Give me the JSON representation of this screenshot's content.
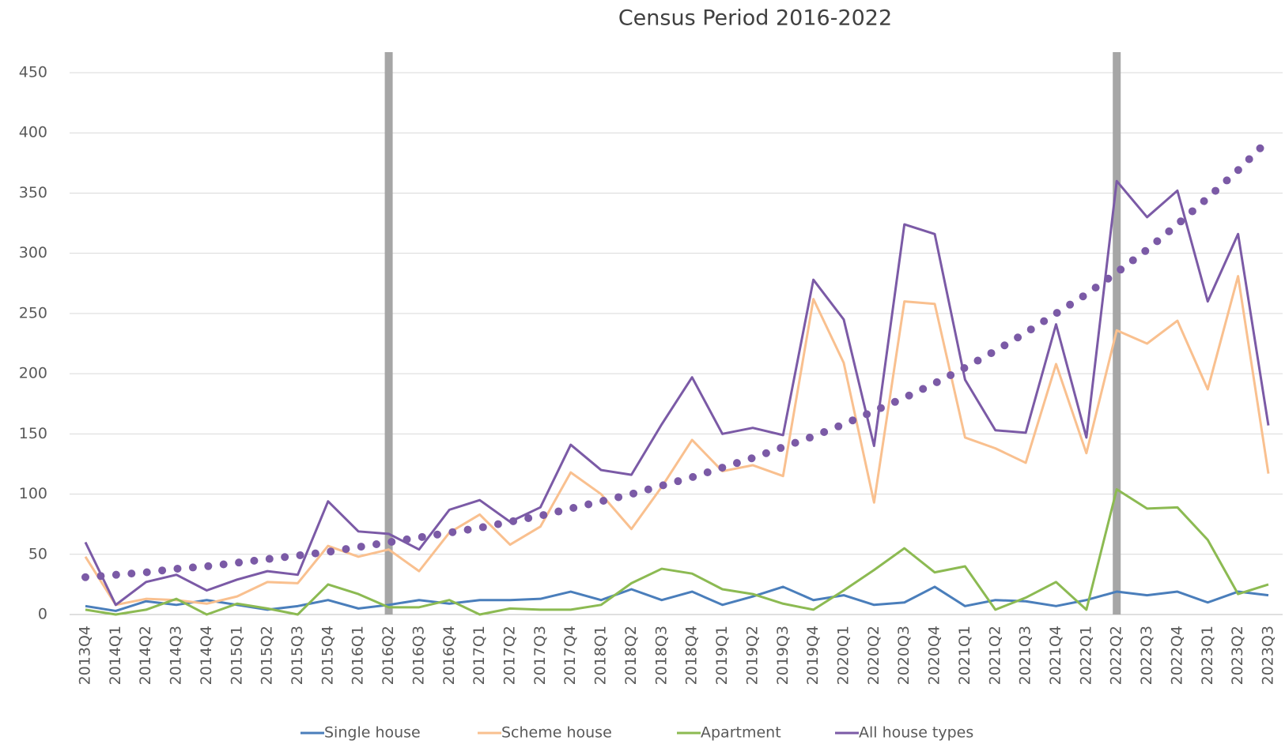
{
  "chart_data": {
    "type": "line",
    "title": "Census Period 2016-2022",
    "categories": [
      "2013Q4",
      "2014Q1",
      "2014Q2",
      "2014Q3",
      "2014Q4",
      "2015Q1",
      "2015Q2",
      "2015Q3",
      "2015Q4",
      "2016Q1",
      "2016Q2",
      "2016Q3",
      "2016Q4",
      "2017Q1",
      "2017Q2",
      "2017Q3",
      "2017Q4",
      "2018Q1",
      "2018Q2",
      "2018Q3",
      "2018Q4",
      "2019Q1",
      "2019Q2",
      "2019Q3",
      "2019Q4",
      "2020Q1",
      "2020Q2",
      "2020Q3",
      "2020Q4",
      "2021Q1",
      "2021Q2",
      "2021Q3",
      "2021Q4",
      "2022Q1",
      "2022Q2",
      "2022Q3",
      "2022Q4",
      "2023Q1",
      "2023Q2",
      "2023Q3"
    ],
    "series": [
      {
        "name": "Single house",
        "color": "#4a7ebb",
        "values": [
          7,
          3,
          11,
          8,
          12,
          8,
          4,
          7,
          12,
          5,
          8,
          12,
          9,
          12,
          12,
          13,
          19,
          12,
          21,
          12,
          19,
          8,
          15,
          23,
          12,
          16,
          8,
          10,
          23,
          7,
          12,
          11,
          7,
          12,
          19,
          16,
          19,
          10,
          19,
          16
        ]
      },
      {
        "name": "Scheme house",
        "color": "#f9c08f",
        "values": [
          48,
          8,
          13,
          12,
          9,
          15,
          27,
          26,
          57,
          48,
          54,
          36,
          68,
          83,
          58,
          73,
          118,
          100,
          71,
          106,
          145,
          119,
          124,
          115,
          262,
          209,
          93,
          260,
          258,
          147,
          138,
          126,
          208,
          134,
          236,
          225,
          244,
          187,
          281,
          117
        ]
      },
      {
        "name": "Apartment",
        "color": "#8cba52",
        "values": [
          4,
          0,
          4,
          13,
          0,
          9,
          5,
          0,
          25,
          17,
          6,
          6,
          12,
          0,
          5,
          4,
          4,
          8,
          26,
          38,
          34,
          21,
          17,
          9,
          4,
          20,
          37,
          55,
          35,
          40,
          4,
          14,
          27,
          4,
          104,
          88,
          89,
          62,
          17,
          25
        ]
      },
      {
        "name": "All house types",
        "color": "#7b5aa6",
        "values": [
          60,
          8,
          27,
          33,
          20,
          29,
          36,
          33,
          94,
          69,
          67,
          54,
          87,
          95,
          77,
          89,
          141,
          120,
          116,
          158,
          197,
          150,
          155,
          149,
          278,
          245,
          140,
          324,
          316,
          195,
          153,
          151,
          241,
          147,
          360,
          330,
          352,
          260,
          316,
          157
        ]
      }
    ],
    "trendline": {
      "color": "#7b5aa6",
      "values": [
        31,
        33,
        35,
        38,
        40,
        43,
        46,
        49,
        52,
        56,
        60,
        64,
        68,
        72,
        77,
        82,
        88,
        94,
        100,
        107,
        114,
        122,
        130,
        139,
        148,
        158,
        169,
        180,
        192,
        205,
        219,
        234,
        250,
        266,
        284,
        303,
        324,
        346,
        369,
        394
      ]
    },
    "period_markers": {
      "color": "#a6a6a6",
      "categories": [
        "2016Q2",
        "2022Q2"
      ]
    },
    "ylim": [
      0,
      450
    ],
    "yticks": [
      0,
      50,
      100,
      150,
      200,
      250,
      300,
      350,
      400,
      450
    ],
    "grid": true,
    "legend": "bottom"
  }
}
